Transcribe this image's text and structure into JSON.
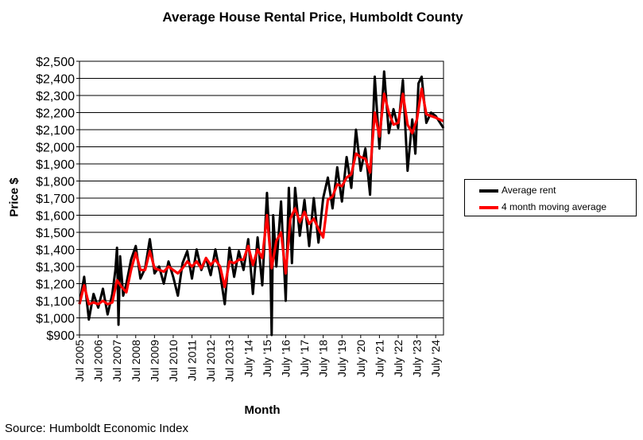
{
  "chart_data": {
    "type": "line",
    "title": "Average House Rental Price, Humboldt County",
    "xlabel": "Month",
    "ylabel": "Price $",
    "ylim": [
      900,
      2500
    ],
    "yticks": [
      900,
      1000,
      1100,
      1200,
      1300,
      1400,
      1500,
      1600,
      1700,
      1800,
      1900,
      2000,
      2100,
      2200,
      2300,
      2400,
      2500
    ],
    "ytick_labels": [
      "$900",
      "$1,000",
      "$1,100",
      "$1,200",
      "$1,300",
      "$1,400",
      "$1,500",
      "$1,600",
      "$1,700",
      "$1,800",
      "$1,900",
      "$2,000",
      "$2,100",
      "$2,200",
      "$2,300",
      "$2,400",
      "$2,500"
    ],
    "xrange": [
      "2005-07",
      "2024-12"
    ],
    "xticks": [
      "2005-07",
      "2006-07",
      "2007-07",
      "2008-07",
      "2009-07",
      "2010-07",
      "2011-07",
      "2012-07",
      "2013-07",
      "2014-07",
      "2015-07",
      "2016-07",
      "2017-07",
      "2018-07",
      "2019-07",
      "2020-07",
      "2021-07",
      "2022-07",
      "2023-07",
      "2024-07"
    ],
    "xtick_labels": [
      "Jul 2005",
      "Jul 2006",
      "Jul 2007",
      "Jul 2008",
      "Jul 2009",
      "Jul 2010",
      "Jul 2011",
      "Jul 2012",
      "Jul 2013",
      "July '14",
      "July '15",
      "July '16",
      "July '17",
      "July '18",
      "July '19",
      "July '20",
      "July '21",
      "July '22",
      "July '23",
      "July '24"
    ],
    "grid": "horizontal",
    "legend_position": "right",
    "series": [
      {
        "name": "Average rent",
        "color": "#000000",
        "points": [
          [
            "2005-07",
            1080
          ],
          [
            "2005-10",
            1240
          ],
          [
            "2006-01",
            990
          ],
          [
            "2006-04",
            1140
          ],
          [
            "2006-07",
            1060
          ],
          [
            "2006-10",
            1170
          ],
          [
            "2007-01",
            1020
          ],
          [
            "2007-04",
            1140
          ],
          [
            "2007-06",
            1280
          ],
          [
            "2007-07",
            1410
          ],
          [
            "2007-08",
            960
          ],
          [
            "2007-09",
            1360
          ],
          [
            "2007-11",
            1130
          ],
          [
            "2008-01",
            1200
          ],
          [
            "2008-04",
            1340
          ],
          [
            "2008-07",
            1420
          ],
          [
            "2008-10",
            1230
          ],
          [
            "2009-01",
            1290
          ],
          [
            "2009-04",
            1460
          ],
          [
            "2009-07",
            1260
          ],
          [
            "2009-10",
            1300
          ],
          [
            "2010-01",
            1200
          ],
          [
            "2010-04",
            1330
          ],
          [
            "2010-07",
            1240
          ],
          [
            "2010-10",
            1130
          ],
          [
            "2011-01",
            1320
          ],
          [
            "2011-04",
            1390
          ],
          [
            "2011-07",
            1230
          ],
          [
            "2011-10",
            1400
          ],
          [
            "2012-01",
            1280
          ],
          [
            "2012-04",
            1350
          ],
          [
            "2012-07",
            1250
          ],
          [
            "2012-10",
            1400
          ],
          [
            "2013-01",
            1260
          ],
          [
            "2013-04",
            1080
          ],
          [
            "2013-07",
            1410
          ],
          [
            "2013-10",
            1240
          ],
          [
            "2014-01",
            1390
          ],
          [
            "2014-04",
            1280
          ],
          [
            "2014-07",
            1460
          ],
          [
            "2014-10",
            1140
          ],
          [
            "2015-01",
            1470
          ],
          [
            "2015-04",
            1190
          ],
          [
            "2015-07",
            1730
          ],
          [
            "2015-09",
            1400
          ],
          [
            "2015-10",
            900
          ],
          [
            "2015-11",
            1600
          ],
          [
            "2016-01",
            1300
          ],
          [
            "2016-04",
            1680
          ],
          [
            "2016-07",
            1100
          ],
          [
            "2016-09",
            1760
          ],
          [
            "2016-11",
            1320
          ],
          [
            "2017-01",
            1760
          ],
          [
            "2017-04",
            1480
          ],
          [
            "2017-07",
            1690
          ],
          [
            "2017-10",
            1420
          ],
          [
            "2018-01",
            1700
          ],
          [
            "2018-04",
            1440
          ],
          [
            "2018-07",
            1700
          ],
          [
            "2018-10",
            1820
          ],
          [
            "2019-01",
            1640
          ],
          [
            "2019-04",
            1880
          ],
          [
            "2019-07",
            1680
          ],
          [
            "2019-10",
            1940
          ],
          [
            "2020-01",
            1760
          ],
          [
            "2020-04",
            2100
          ],
          [
            "2020-07",
            1860
          ],
          [
            "2020-10",
            1990
          ],
          [
            "2021-01",
            1720
          ],
          [
            "2021-04",
            2410
          ],
          [
            "2021-07",
            1990
          ],
          [
            "2021-10",
            2440
          ],
          [
            "2022-01",
            2080
          ],
          [
            "2022-04",
            2220
          ],
          [
            "2022-07",
            2110
          ],
          [
            "2022-10",
            2390
          ],
          [
            "2023-01",
            1860
          ],
          [
            "2023-04",
            2160
          ],
          [
            "2023-06",
            1960
          ],
          [
            "2023-08",
            2370
          ],
          [
            "2023-10",
            2410
          ],
          [
            "2024-01",
            2140
          ],
          [
            "2024-04",
            2200
          ],
          [
            "2024-07",
            2180
          ],
          [
            "2024-12",
            2110
          ]
        ]
      },
      {
        "name": "4 month moving average",
        "color": "#ff0000",
        "points": [
          [
            "2005-07",
            1080
          ],
          [
            "2005-10",
            1190
          ],
          [
            "2006-01",
            1080
          ],
          [
            "2006-04",
            1090
          ],
          [
            "2006-07",
            1080
          ],
          [
            "2006-10",
            1100
          ],
          [
            "2007-01",
            1080
          ],
          [
            "2007-04",
            1090
          ],
          [
            "2007-07",
            1220
          ],
          [
            "2007-10",
            1180
          ],
          [
            "2008-01",
            1150
          ],
          [
            "2008-04",
            1280
          ],
          [
            "2008-07",
            1380
          ],
          [
            "2008-10",
            1280
          ],
          [
            "2009-01",
            1280
          ],
          [
            "2009-04",
            1390
          ],
          [
            "2009-07",
            1290
          ],
          [
            "2009-10",
            1280
          ],
          [
            "2010-01",
            1270
          ],
          [
            "2010-04",
            1300
          ],
          [
            "2010-07",
            1280
          ],
          [
            "2010-10",
            1260
          ],
          [
            "2011-01",
            1290
          ],
          [
            "2011-04",
            1330
          ],
          [
            "2011-07",
            1300
          ],
          [
            "2011-10",
            1330
          ],
          [
            "2012-01",
            1290
          ],
          [
            "2012-04",
            1350
          ],
          [
            "2012-07",
            1310
          ],
          [
            "2012-10",
            1340
          ],
          [
            "2013-01",
            1300
          ],
          [
            "2013-04",
            1180
          ],
          [
            "2013-07",
            1330
          ],
          [
            "2013-10",
            1320
          ],
          [
            "2014-01",
            1340
          ],
          [
            "2014-04",
            1340
          ],
          [
            "2014-07",
            1420
          ],
          [
            "2014-10",
            1310
          ],
          [
            "2015-01",
            1400
          ],
          [
            "2015-04",
            1350
          ],
          [
            "2015-07",
            1600
          ],
          [
            "2015-10",
            1290
          ],
          [
            "2016-01",
            1450
          ],
          [
            "2016-04",
            1500
          ],
          [
            "2016-07",
            1260
          ],
          [
            "2016-10",
            1580
          ],
          [
            "2017-01",
            1640
          ],
          [
            "2017-04",
            1560
          ],
          [
            "2017-07",
            1620
          ],
          [
            "2017-10",
            1550
          ],
          [
            "2018-01",
            1580
          ],
          [
            "2018-04",
            1520
          ],
          [
            "2018-07",
            1470
          ],
          [
            "2018-10",
            1690
          ],
          [
            "2019-01",
            1710
          ],
          [
            "2019-04",
            1780
          ],
          [
            "2019-07",
            1770
          ],
          [
            "2019-10",
            1820
          ],
          [
            "2020-01",
            1840
          ],
          [
            "2020-04",
            1960
          ],
          [
            "2020-07",
            1940
          ],
          [
            "2020-10",
            1930
          ],
          [
            "2021-01",
            1850
          ],
          [
            "2021-04",
            2200
          ],
          [
            "2021-07",
            2060
          ],
          [
            "2021-10",
            2310
          ],
          [
            "2022-01",
            2200
          ],
          [
            "2022-04",
            2130
          ],
          [
            "2022-07",
            2140
          ],
          [
            "2022-10",
            2310
          ],
          [
            "2023-01",
            2130
          ],
          [
            "2023-04",
            2080
          ],
          [
            "2023-07",
            2160
          ],
          [
            "2023-10",
            2340
          ],
          [
            "2024-01",
            2190
          ],
          [
            "2024-04",
            2180
          ],
          [
            "2024-07",
            2170
          ],
          [
            "2024-12",
            2150
          ]
        ]
      }
    ]
  },
  "source": "Source: Humboldt Economic Index"
}
